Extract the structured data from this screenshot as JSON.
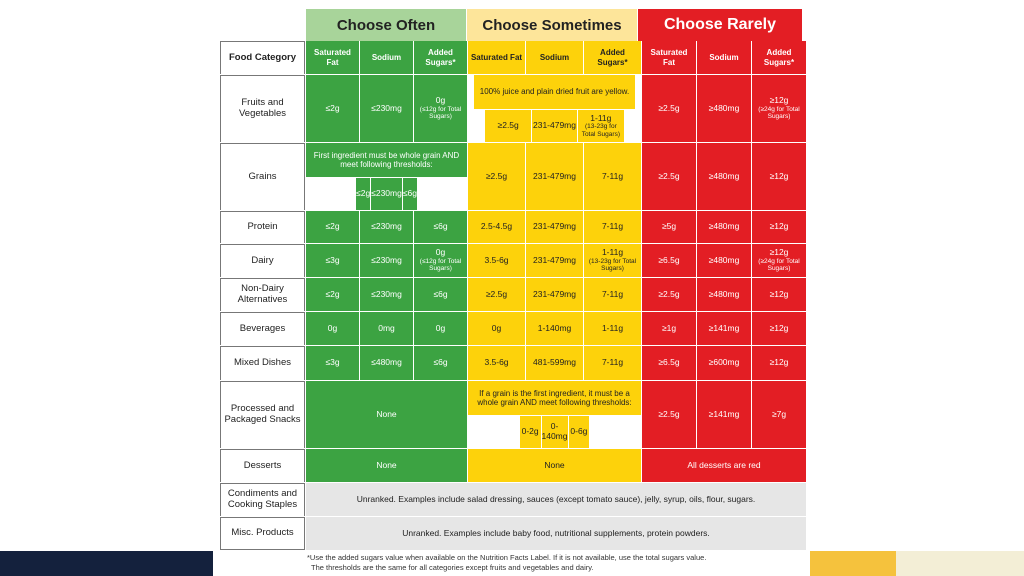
{
  "groups": {
    "often": "Choose Often",
    "sometimes": "Choose Sometimes",
    "rarely": "Choose Rarely"
  },
  "headers": {
    "food_category": "Food Category",
    "sat_fat": "Saturated Fat",
    "sodium": "Sodium",
    "added_sugars": "Added Sugars*"
  },
  "rows": {
    "fruits": {
      "label": "Fruits and Vegetables",
      "often": [
        "≤2g",
        "≤230mg",
        "0g",
        "(≤12g for Total Sugars)"
      ],
      "sometimes_note": "100% juice and plain dried fruit are yellow.",
      "sometimes": [
        "≥2.5g",
        "231-479mg",
        "1-11g",
        "(13-23g for Total Sugars)"
      ],
      "rarely": [
        "≥2.5g",
        "≥480mg",
        "≥12g",
        "(≥24g for Total Sugars)"
      ]
    },
    "grains": {
      "label": "Grains",
      "often_note": "First ingredient must be whole grain AND meet following thresholds:",
      "often": [
        "≤2g",
        "≤230mg",
        "≤6g"
      ],
      "sometimes": [
        "≥2.5g",
        "231-479mg",
        "7-11g"
      ],
      "rarely": [
        "≥2.5g",
        "≥480mg",
        "≥12g"
      ]
    },
    "protein": {
      "label": "Protein",
      "often": [
        "≤2g",
        "≤230mg",
        "≤6g"
      ],
      "sometimes": [
        "2.5-4.5g",
        "231-479mg",
        "7-11g"
      ],
      "rarely": [
        "≥5g",
        "≥480mg",
        "≥12g"
      ]
    },
    "dairy": {
      "label": "Dairy",
      "often": [
        "≤3g",
        "≤230mg",
        "0g",
        "(≤12g for Total Sugars)"
      ],
      "sometimes": [
        "3.5-6g",
        "231-479mg",
        "1-11g",
        "(13-23g for Total Sugars)"
      ],
      "rarely": [
        "≥6.5g",
        "≥480mg",
        "≥12g",
        "(≥24g for Total Sugars)"
      ]
    },
    "nondairy": {
      "label": "Non-Dairy Alternatives",
      "often": [
        "≤2g",
        "≤230mg",
        "≤6g"
      ],
      "sometimes": [
        "≥2.5g",
        "231-479mg",
        "7-11g"
      ],
      "rarely": [
        "≥2.5g",
        "≥480mg",
        "≥12g"
      ]
    },
    "beverages": {
      "label": "Beverages",
      "often": [
        "0g",
        "0mg",
        "0g"
      ],
      "sometimes": [
        "0g",
        "1-140mg",
        "1-11g"
      ],
      "rarely": [
        "≥1g",
        "≥141mg",
        "≥12g"
      ]
    },
    "mixed": {
      "label": "Mixed Dishes",
      "often": [
        "≤3g",
        "≤480mg",
        "≤6g"
      ],
      "sometimes": [
        "3.5-6g",
        "481-599mg",
        "7-11g"
      ],
      "rarely": [
        "≥6.5g",
        "≥600mg",
        "≥12g"
      ]
    },
    "snacks": {
      "label": "Processed and Packaged Snacks",
      "often_text": "None",
      "sometimes_note": "If a grain is the first ingredient, it must be a whole grain AND meet following thresholds:",
      "sometimes": [
        "0-2g",
        "0-140mg",
        "0-6g"
      ],
      "rarely": [
        "≥2.5g",
        "≥141mg",
        "≥7g"
      ]
    },
    "desserts": {
      "label": "Desserts",
      "often_text": "None",
      "sometimes_text": "None",
      "rarely_text": "All desserts are red"
    },
    "condiments": {
      "label": "Condiments and Cooking Staples",
      "text": "Unranked. Examples include salad dressing, sauces (except tomato sauce), jelly, syrup, oils, flour, sugars."
    },
    "misc": {
      "label": "Misc. Products",
      "text": "Unranked. Examples include baby food, nutritional supplements, protein powders."
    }
  },
  "footnote": {
    "line1": "*Use the added sugars value when available on the Nutrition Facts Label. If it is not available, use the total sugars value.",
    "line2": "The thresholds are the same for all categories except fruits and vegetables and dairy."
  }
}
